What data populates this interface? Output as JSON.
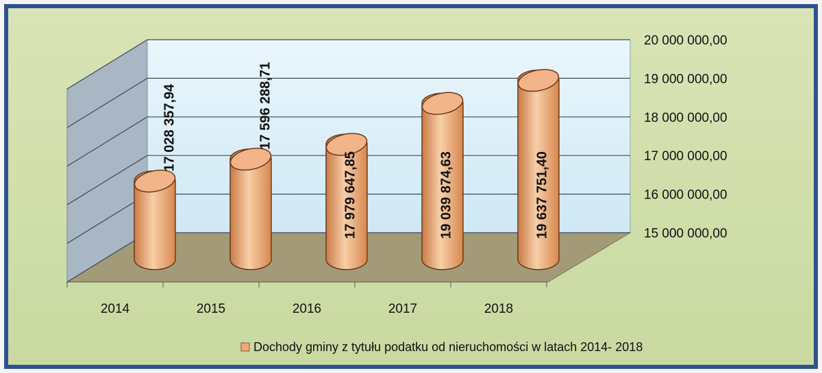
{
  "chart_data": {
    "type": "bar",
    "categories": [
      "2014",
      "2015",
      "2016",
      "2017",
      "2018"
    ],
    "series": [
      {
        "name": "Dochody gminy z tytułu podatku od nieruchomości w latach 2014- 2018",
        "color": "#f0a878",
        "values": [
          17028357.94,
          17596288.71,
          17979647.85,
          19039874.63,
          19637751.4
        ],
        "value_labels": [
          "17 028 357,94",
          "17 596 288,71",
          "17 979 647,85",
          "19 039 874,63",
          "19 637 751,40"
        ]
      }
    ],
    "ylim": [
      15000000,
      20000000
    ],
    "yticks": [
      {
        "value": 15000000,
        "label": "15 000 000,00"
      },
      {
        "value": 16000000,
        "label": "16 000 000,00"
      },
      {
        "value": 17000000,
        "label": "17 000 000,00"
      },
      {
        "value": 18000000,
        "label": "18 000 000,00"
      },
      {
        "value": 19000000,
        "label": "19 000 000,00"
      },
      {
        "value": 20000000,
        "label": "20 000 000,00"
      }
    ],
    "grid": true,
    "legend": "bottom"
  }
}
